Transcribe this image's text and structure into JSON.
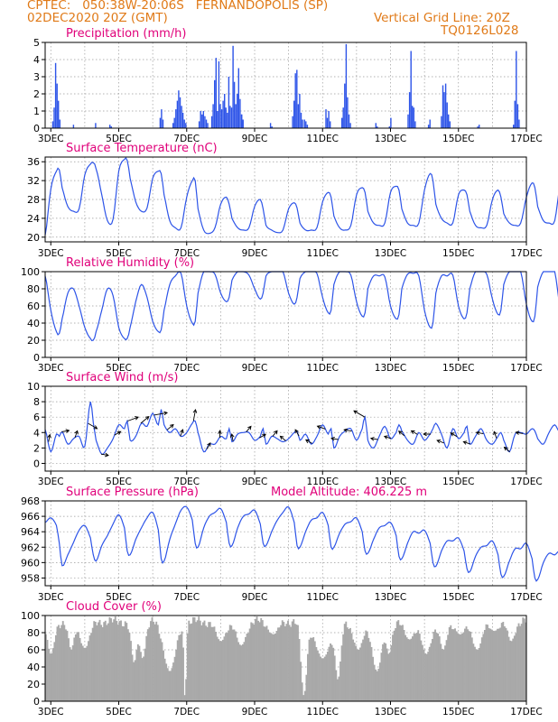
{
  "header": {
    "line1": "CPTEC:   050:38W-20:06S   FERNANDOPOLIS (SP)",
    "line2": "02DEC2020 20Z (GMT)",
    "grid_label": "Vertical Grid Line: 20Z",
    "code": "TQ0126L028"
  },
  "colors": {
    "header": "#e07a18",
    "title": "#e0007a",
    "series": "#2d54e8",
    "cloud": "#a9a9a9",
    "grid": "#9a9a9a"
  },
  "x_axis": {
    "start": "02DEC2020 20Z",
    "end": "17DEC2020 00Z",
    "tick_labels": [
      "3DEC",
      "5DEC",
      "7DEC",
      "9DEC",
      "11DEC",
      "13DEC",
      "15DEC",
      "17DEC"
    ],
    "tick_days": [
      3,
      5,
      7,
      9,
      11,
      13,
      15,
      17
    ]
  },
  "chart_data": [
    {
      "type": "bar",
      "title": "Precipitation (mm/h)",
      "ylim": [
        0,
        5
      ],
      "ytick_labels": [
        "0",
        "1",
        "2",
        "3",
        "4",
        "5"
      ],
      "grid": true,
      "events": [
        {
          "day": 3.04,
          "values": [
            0.4,
            1.2,
            3.8,
            2.6,
            1.6,
            0.5
          ]
        },
        {
          "day": 3.65,
          "values": [
            0.2
          ]
        },
        {
          "day": 4.3,
          "values": [
            0.3
          ]
        },
        {
          "day": 4.72,
          "values": [
            0.2,
            0.1
          ]
        },
        {
          "day": 6.2,
          "values": [
            0.6,
            1.1,
            0.5
          ]
        },
        {
          "day": 6.58,
          "values": [
            0.3,
            0.6,
            1.1,
            1.6,
            2.2,
            1.8,
            1.3,
            0.9,
            0.5,
            0.3
          ]
        },
        {
          "day": 7.35,
          "values": [
            0.4,
            1.0,
            0.8,
            1.0,
            0.7,
            0.5,
            0.3
          ]
        },
        {
          "day": 7.72,
          "values": [
            0.7,
            1.4,
            2.8,
            4.1,
            1.0,
            3.9,
            1.4,
            1.1,
            1.6,
            2.0,
            1.2,
            0.9,
            3.0,
            1.3,
            1.2,
            4.8,
            2.7,
            1.4,
            2.0,
            3.5,
            1.7,
            0.8,
            0.4
          ]
        },
        {
          "day": 8.6,
          "values": [
            0.8,
            0.5
          ]
        },
        {
          "day": 9.45,
          "values": [
            0.3,
            0.1
          ]
        },
        {
          "day": 10.1,
          "values": [
            0.7,
            1.6,
            3.2,
            3.4,
            1.4,
            2.0,
            0.9,
            0.5
          ]
        },
        {
          "day": 10.45,
          "values": [
            0.5,
            0.4,
            0.2
          ]
        },
        {
          "day": 11.08,
          "values": [
            1.1,
            0.6,
            1.0,
            0.4
          ]
        },
        {
          "day": 11.55,
          "values": [
            0.6,
            1.2,
            2.6,
            4.9,
            1.8,
            0.8,
            0.3
          ]
        },
        {
          "day": 12.55,
          "values": [
            0.3,
            0.1
          ]
        },
        {
          "day": 12.95,
          "values": [
            0.1,
            0.6
          ]
        },
        {
          "day": 13.5,
          "values": [
            0.8,
            2.1,
            4.5,
            1.3,
            1.2,
            0.4
          ]
        },
        {
          "day": 14.1,
          "values": [
            0.2,
            0.5
          ]
        },
        {
          "day": 14.48,
          "values": [
            0.7,
            2.5,
            2.1,
            2.6,
            1.5,
            0.8,
            0.4
          ]
        },
        {
          "day": 15.55,
          "values": [
            0.1,
            0.2
          ]
        },
        {
          "day": 16.6,
          "values": [
            0.2,
            1.6,
            4.5,
            1.4,
            0.5
          ]
        }
      ]
    },
    {
      "type": "line",
      "title": "Surface Temperature (nC)",
      "ylim": [
        19,
        37
      ],
      "yticks": [
        20,
        24,
        28,
        32,
        36
      ],
      "ytick_labels": [
        "20",
        "24",
        "28",
        "32",
        "36"
      ],
      "grid": true,
      "daily": [
        [
          20.4,
          30.2,
          34.0,
          34.3,
          30.5,
          26.5,
          25.5
        ],
        [
          26.0,
          33.2,
          35.5,
          35.8,
          34.5,
          29.0,
          23.5
        ],
        [
          23.8,
          34.0,
          36.5,
          36.3,
          32.5,
          27.5,
          25.5
        ],
        [
          26.2,
          32.5,
          34.0,
          33.5,
          29.0,
          23.5,
          22.0
        ],
        [
          22.0,
          28.5,
          32.0,
          32.0,
          26.0,
          21.5,
          20.8
        ],
        [
          22.0,
          27.0,
          28.5,
          27.0,
          24.0,
          22.0,
          21.5
        ],
        [
          22.0,
          26.5,
          28.0,
          26.0,
          22.5,
          21.5,
          21.0
        ],
        [
          21.5,
          26.0,
          27.3,
          26.2,
          23.0,
          21.5,
          21.5
        ],
        [
          22.0,
          27.5,
          29.5,
          28.5,
          24.5,
          22.0,
          21.5
        ],
        [
          22.5,
          29.0,
          30.5,
          29.5,
          25.5,
          23.0,
          22.5
        ],
        [
          23.0,
          29.5,
          30.8,
          30.0,
          26.0,
          23.0,
          22.5
        ],
        [
          23.0,
          30.0,
          33.5,
          32.0,
          27.0,
          24.0,
          23.0
        ],
        [
          23.0,
          29.0,
          30.0,
          29.0,
          25.5,
          22.5,
          22.0
        ],
        [
          22.5,
          28.0,
          30.0,
          28.5,
          25.0,
          23.0,
          22.5
        ],
        [
          23.0,
          28.5,
          31.5,
          30.5,
          26.5,
          23.5,
          23.0
        ],
        [
          23.5,
          31.5,
          33.8,
          32.5,
          28.5,
          25.0,
          24.0
        ]
      ]
    },
    {
      "type": "line",
      "title": "Relative Humidity (%)",
      "ylim": [
        0,
        100
      ],
      "yticks": [
        0,
        20,
        40,
        60,
        80,
        100
      ],
      "ytick_labels": [
        "0",
        "20",
        "40",
        "60",
        "80",
        "100"
      ],
      "grid": true,
      "daily": [
        [
          95,
          55,
          30,
          28,
          45,
          75,
          80
        ],
        [
          60,
          35,
          22,
          20,
          30,
          55,
          80
        ],
        [
          72,
          35,
          22,
          22,
          35,
          65,
          85
        ],
        [
          70,
          42,
          30,
          32,
          55,
          85,
          95
        ],
        [
          98,
          60,
          40,
          42,
          75,
          100,
          100
        ],
        [
          97,
          75,
          65,
          70,
          90,
          100,
          100
        ],
        [
          96,
          80,
          68,
          75,
          95,
          100,
          100
        ],
        [
          100,
          75,
          62,
          70,
          92,
          100,
          100
        ],
        [
          98,
          70,
          52,
          55,
          85,
          100,
          100
        ],
        [
          96,
          65,
          48,
          52,
          80,
          95,
          95
        ],
        [
          94,
          60,
          45,
          50,
          80,
          97,
          98
        ],
        [
          95,
          55,
          35,
          40,
          75,
          95,
          95
        ],
        [
          96,
          60,
          45,
          52,
          80,
          100,
          100
        ],
        [
          97,
          68,
          50,
          55,
          85,
          100,
          100
        ],
        [
          100,
          62,
          42,
          48,
          82,
          100,
          100
        ],
        [
          100,
          55,
          32,
          40,
          55,
          45,
          52
        ]
      ]
    },
    {
      "type": "line",
      "title": "Surface Wind (m/s)",
      "ylim": [
        -1,
        10
      ],
      "yticks": [
        0,
        2,
        4,
        6,
        8,
        10
      ],
      "ytick_labels": [
        "0",
        "2",
        "4",
        "6",
        "8",
        "10"
      ],
      "grid": true,
      "arrows": true,
      "arrow_dirs_deg": [
        170,
        100,
        160,
        60,
        80,
        120,
        110,
        130,
        100,
        130,
        160,
        170,
        150,
        180,
        190,
        140,
        120,
        140,
        230,
        210,
        240,
        250,
        260,
        260,
        240,
        260,
        250,
        230,
        240,
        270,
        250,
        240,
        250,
        260,
        200,
        230,
        260
      ],
      "daily": [
        [
          4.4,
          1.5,
          3.8,
          3.5,
          4.1,
          2.5,
          3.2
        ],
        [
          3.5,
          2.2,
          8.0,
          5.3,
          3.0,
          1.2,
          2.0
        ],
        [
          3.2,
          5.0,
          4.5,
          5.5,
          3.0,
          3.5,
          5.2
        ],
        [
          4.8,
          6.5,
          5.0,
          7.0,
          5.0,
          4.0,
          4.5
        ],
        [
          3.5,
          4.0,
          5.2,
          5.5,
          4.0,
          1.5,
          2.5
        ],
        [
          2.5,
          3.5,
          3.2,
          4.5,
          2.8,
          3.8,
          4.0
        ],
        [
          4.0,
          3.0,
          3.5,
          4.5,
          2.5,
          3.5,
          3.2
        ],
        [
          2.8,
          3.2,
          4.0,
          4.2,
          3.0,
          3.8,
          2.5
        ],
        [
          3.5,
          5.0,
          3.8,
          4.5,
          2.0,
          3.5,
          4.2
        ],
        [
          4.5,
          3.0,
          4.5,
          6.0,
          3.0,
          2.0,
          3.5
        ],
        [
          4.8,
          3.2,
          4.0,
          5.0,
          4.2,
          3.0,
          2.5
        ],
        [
          4.0,
          3.0,
          3.8,
          4.5,
          5.2,
          3.8,
          2.0
        ],
        [
          4.5,
          3.2,
          4.0,
          4.8,
          2.5,
          3.5,
          4.5
        ],
        [
          3.0,
          2.5,
          3.5,
          4.0,
          3.0,
          1.5,
          3.8
        ],
        [
          4.0,
          3.8,
          4.5,
          4.2,
          3.2,
          2.5,
          4.0
        ],
        [
          5.0,
          4.0,
          5.5,
          4.2,
          2.5,
          3.5,
          3.0
        ]
      ]
    },
    {
      "type": "line",
      "title": "Surface Pressure (hPa)",
      "subtitle": "Model Altitude: 406.225  m",
      "ylim": [
        957,
        968
      ],
      "yticks": [
        958,
        960,
        962,
        964,
        966,
        968
      ],
      "ytick_labels": [
        "958",
        "960",
        "962",
        "964",
        "966",
        "968"
      ],
      "grid": true,
      "daily": [
        [
          965.2,
          965.8,
          964.8,
          962.5,
          959.6,
          961.0,
          962.6
        ],
        [
          964.2,
          964.8,
          963.2,
          961.0,
          960.2,
          962.2,
          963.5
        ],
        [
          965.0,
          966.2,
          964.5,
          961.5,
          961.0,
          963.0,
          964.5
        ],
        [
          965.8,
          966.5,
          964.2,
          960.5,
          960.2,
          963.0,
          965.0
        ],
        [
          966.8,
          967.2,
          965.5,
          962.5,
          962.0,
          964.5,
          966.0
        ],
        [
          966.5,
          967.0,
          965.2,
          962.5,
          962.2,
          964.5,
          966.0
        ],
        [
          966.3,
          966.8,
          965.0,
          962.5,
          962.2,
          964.0,
          965.5
        ],
        [
          966.5,
          967.2,
          965.2,
          962.2,
          962.0,
          964.0,
          965.5
        ],
        [
          965.8,
          966.5,
          964.8,
          962.0,
          962.0,
          963.8,
          965.0
        ],
        [
          965.3,
          965.8,
          964.0,
          961.5,
          961.2,
          963.0,
          964.5
        ],
        [
          964.8,
          965.2,
          963.5,
          960.8,
          960.5,
          962.5,
          964.0
        ],
        [
          963.8,
          964.2,
          962.5,
          960.0,
          959.5,
          961.5,
          962.8
        ],
        [
          962.8,
          963.2,
          961.5,
          959.2,
          958.8,
          960.8,
          962.0
        ],
        [
          962.2,
          962.8,
          961.0,
          958.5,
          958.2,
          960.2,
          961.8
        ],
        [
          961.8,
          962.5,
          960.5,
          958.0,
          957.8,
          960.0,
          961.2
        ],
        [
          961.0,
          961.5,
          959.8,
          957.5,
          957.2,
          958.5,
          959.5
        ]
      ]
    },
    {
      "type": "bar",
      "title": "Cloud Cover (%)",
      "ylim": [
        0,
        100
      ],
      "yticks": [
        0,
        20,
        40,
        60,
        80,
        100
      ],
      "ytick_labels": [
        "0",
        "20",
        "40",
        "60",
        "80",
        "100"
      ],
      "grid": true,
      "baseline": 93,
      "dips": [
        {
          "day": 3.0,
          "w": 0.15,
          "v": 55
        },
        {
          "day": 3.6,
          "w": 0.12,
          "v": 60
        },
        {
          "day": 4.0,
          "w": 0.2,
          "v": 62
        },
        {
          "day": 5.45,
          "w": 0.12,
          "v": 45
        },
        {
          "day": 5.7,
          "w": 0.12,
          "v": 50
        },
        {
          "day": 6.5,
          "w": 0.25,
          "v": 35
        },
        {
          "day": 6.95,
          "w": 0.05,
          "v": 2
        },
        {
          "day": 8.0,
          "w": 0.2,
          "v": 70
        },
        {
          "day": 8.6,
          "w": 0.2,
          "v": 65
        },
        {
          "day": 9.55,
          "w": 0.2,
          "v": 78
        },
        {
          "day": 10.45,
          "w": 0.12,
          "v": 5
        },
        {
          "day": 11.0,
          "w": 0.3,
          "v": 50
        },
        {
          "day": 11.45,
          "w": 0.12,
          "v": 25
        },
        {
          "day": 12.05,
          "w": 0.2,
          "v": 60
        },
        {
          "day": 12.6,
          "w": 0.2,
          "v": 35
        },
        {
          "day": 12.95,
          "w": 0.12,
          "v": 55
        },
        {
          "day": 13.55,
          "w": 0.2,
          "v": 72
        },
        {
          "day": 14.05,
          "w": 0.2,
          "v": 55
        },
        {
          "day": 14.55,
          "w": 0.15,
          "v": 60
        },
        {
          "day": 15.05,
          "w": 0.2,
          "v": 78
        },
        {
          "day": 15.55,
          "w": 0.2,
          "v": 60
        },
        {
          "day": 16.05,
          "w": 0.2,
          "v": 82
        },
        {
          "day": 16.55,
          "w": 0.15,
          "v": 70
        }
      ]
    }
  ]
}
